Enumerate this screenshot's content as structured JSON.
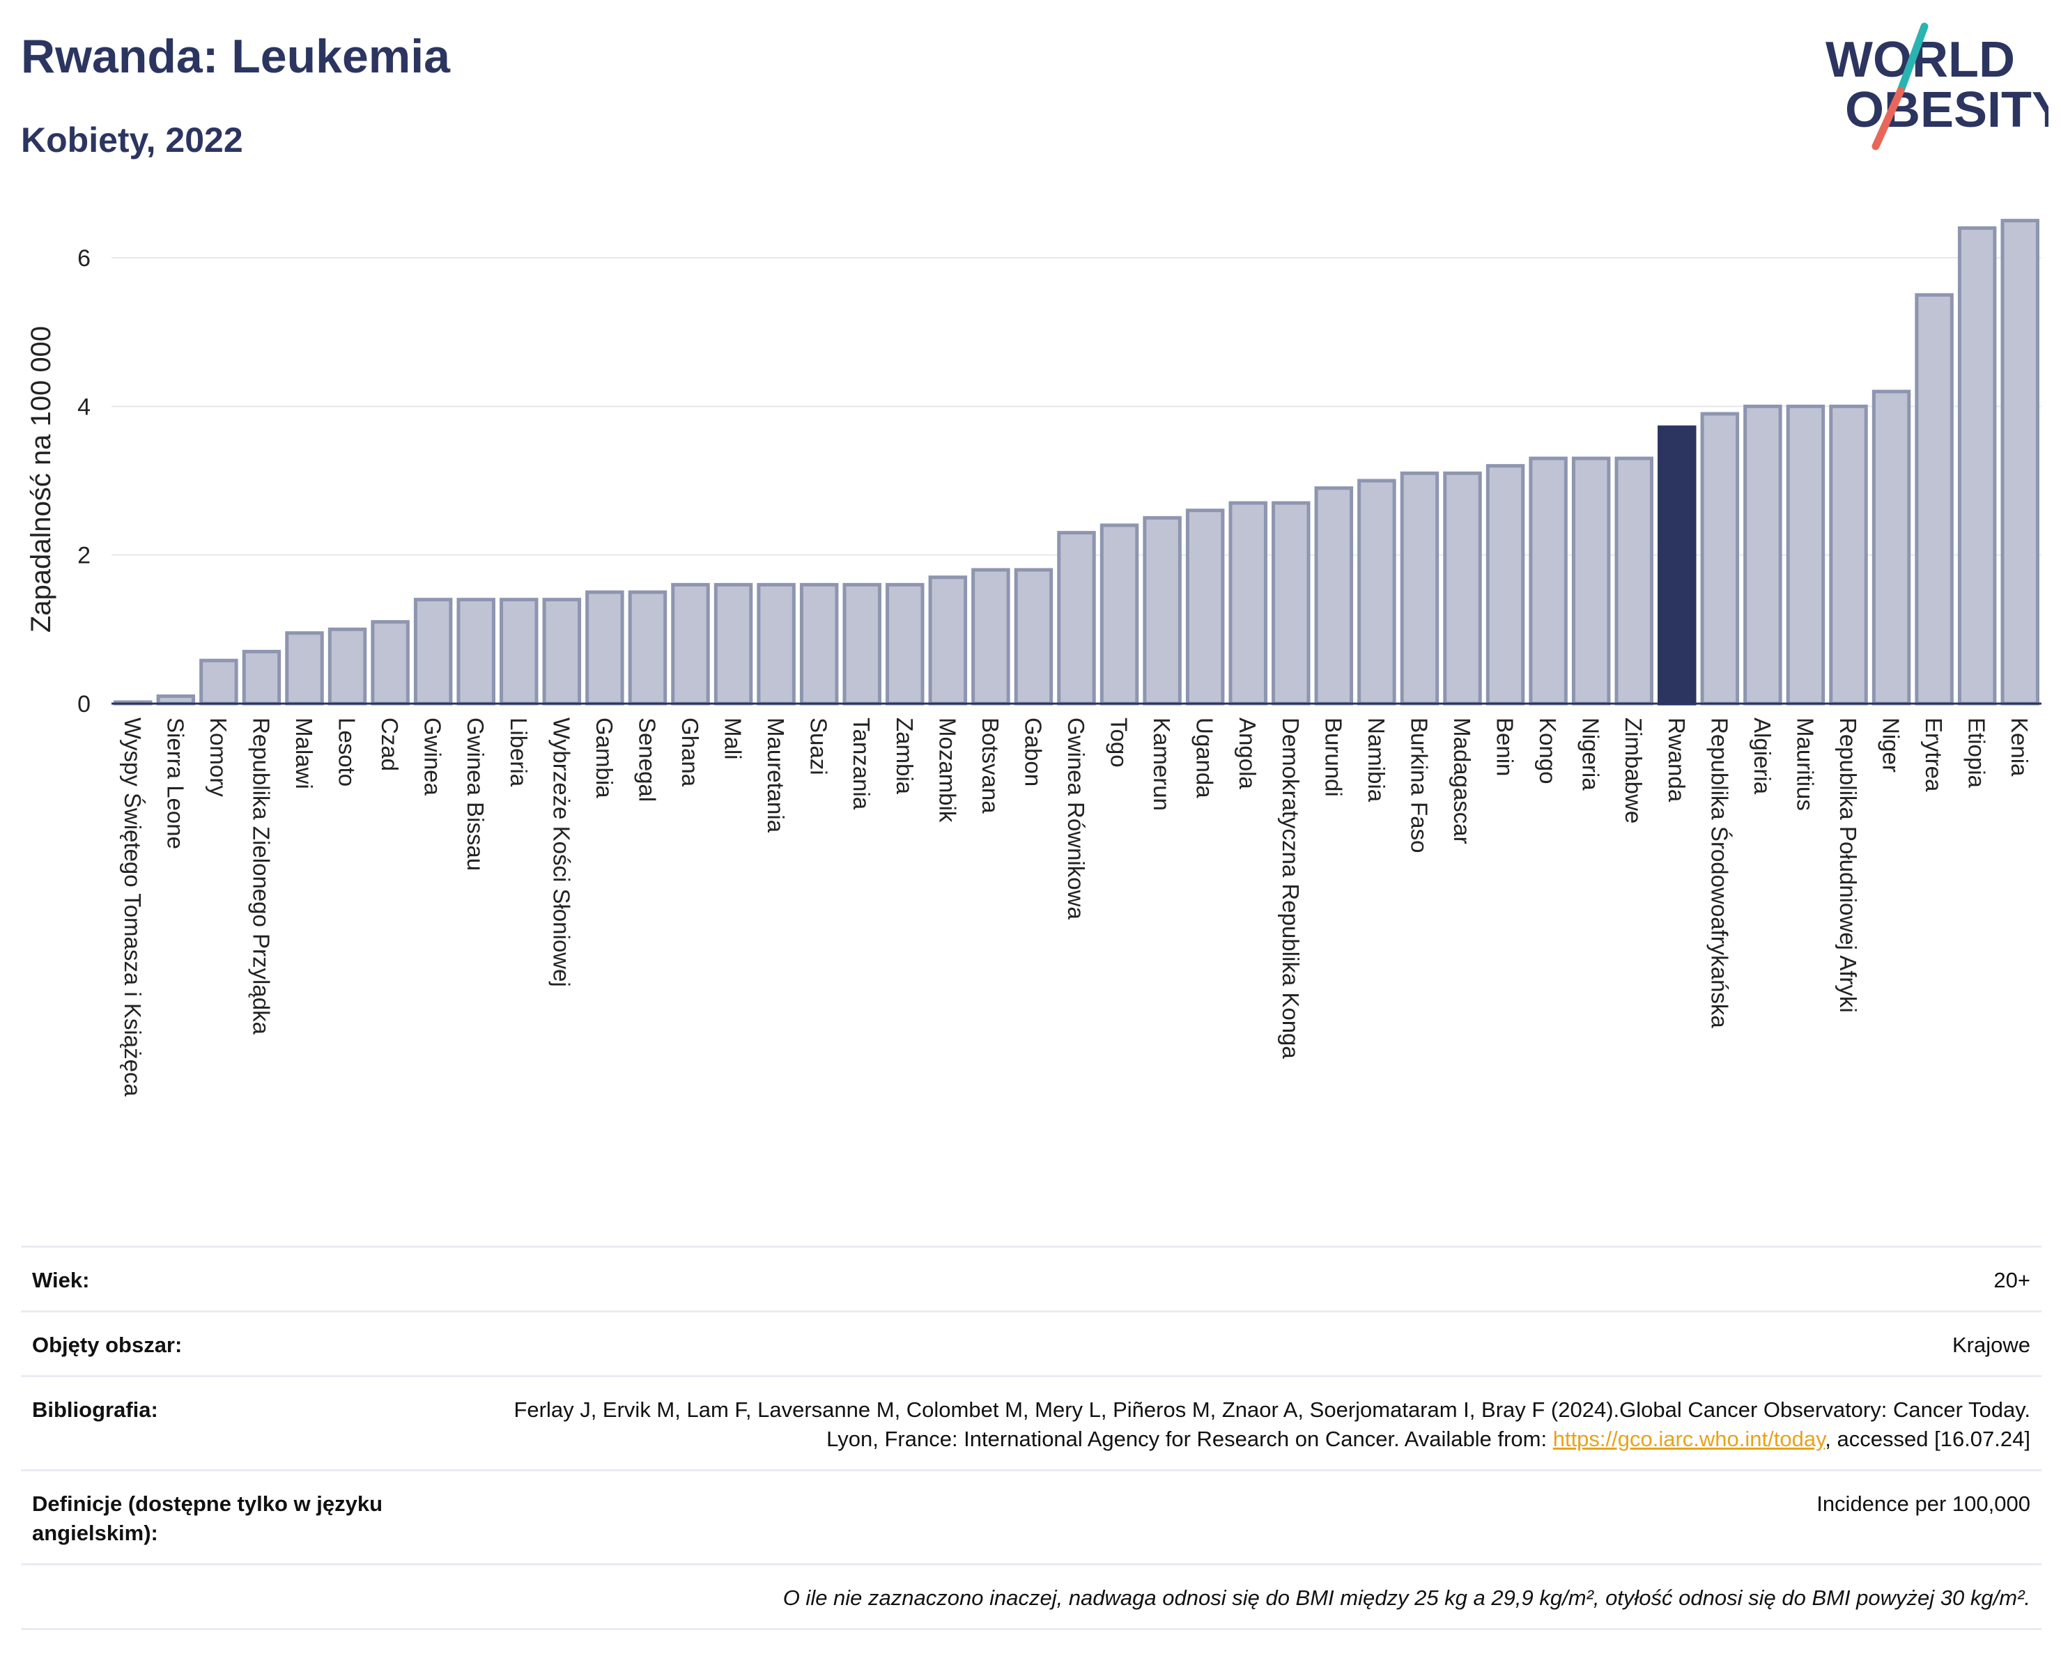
{
  "header": {
    "title": "Rwanda: Leukemia",
    "subtitle": "Kobiety, 2022",
    "logo_line1": "WORLD",
    "logo_line2": "OBESITY"
  },
  "colors": {
    "bar": "#bfc3d3",
    "bar_stroke": "#8e95b0",
    "highlight": "#2b3560",
    "title": "#2b3560",
    "grid": "#e6e8ee",
    "logo_teal": "#2bb3b1",
    "logo_coral": "#e8675a"
  },
  "chart_data": {
    "type": "bar",
    "ylabel": "Zapadalność na 100 000",
    "ylim": [
      0,
      6.6
    ],
    "yticks": [
      0,
      2,
      4,
      6
    ],
    "grid": true,
    "highlight": "Rwanda",
    "categories": [
      "Wyspy Świętego Tomasza i Książęca",
      "Sierra Leone",
      "Komory",
      "Republika Zielonego Przylądka",
      "Malawi",
      "Lesoto",
      "Czad",
      "Gwinea",
      "Gwinea Bissau",
      "Liberia",
      "Wybrzeże Kości Słoniowej",
      "Gambia",
      "Senegal",
      "Ghana",
      "Mali",
      "Mauretania",
      "Suazi",
      "Tanzania",
      "Zambia",
      "Mozambik",
      "Botsvana",
      "Gabon",
      "Gwinea Równikowa",
      "Togo",
      "Kamerun",
      "Uganda",
      "Angola",
      "Demokratyczna Republika Konga",
      "Burundi",
      "Namibia",
      "Burkina Faso",
      "Madagascar",
      "Benin",
      "Kongo",
      "Nigeria",
      "Zimbabwe",
      "Rwanda",
      "Republika Środowoafrykańska",
      "Algieria",
      "Mauritius",
      "Republika Południowej Afryki",
      "Niger",
      "Erytrea",
      "Etiopia",
      "Kenia"
    ],
    "values": [
      0.02,
      0.1,
      0.58,
      0.7,
      0.95,
      1.0,
      1.1,
      1.4,
      1.4,
      1.4,
      1.4,
      1.5,
      1.5,
      1.6,
      1.6,
      1.6,
      1.6,
      1.6,
      1.6,
      1.7,
      1.8,
      1.8,
      2.3,
      2.4,
      2.5,
      2.6,
      2.7,
      2.7,
      2.9,
      3.0,
      3.1,
      3.1,
      3.2,
      3.3,
      3.3,
      3.3,
      3.72,
      3.9,
      4.0,
      4.0,
      4.0,
      4.2,
      5.5,
      6.4,
      6.5
    ]
  },
  "meta": {
    "age_label": "Wiek:",
    "age_value": "20+",
    "coverage_label": "Objęty obszar:",
    "coverage_value": "Krajowe",
    "bibliography_label": "Bibliografia:",
    "bibliography_text_1": "Ferlay J, Ervik M, Lam F, Laversanne M, Colombet M, Mery L, Piñeros M, Znaor A, Soerjomataram I, Bray F (2024).Global Cancer Observatory: Cancer Today. Lyon, France: International Agency for Research on Cancer. Available from:",
    "bibliography_link": "https://gco.iarc.who.int/today",
    "bibliography_text_2": ", accessed [16.07.24]",
    "definitions_label": "Definicje (dostępne tylko w języku angielskim):",
    "definitions_value": "Incidence per 100,000",
    "note": "O ile nie zaznaczono inaczej, nadwaga odnosi się do BMI między 25 kg a 29,9 kg/m², otyłość odnosi się do BMI powyżej 30 kg/m²."
  }
}
